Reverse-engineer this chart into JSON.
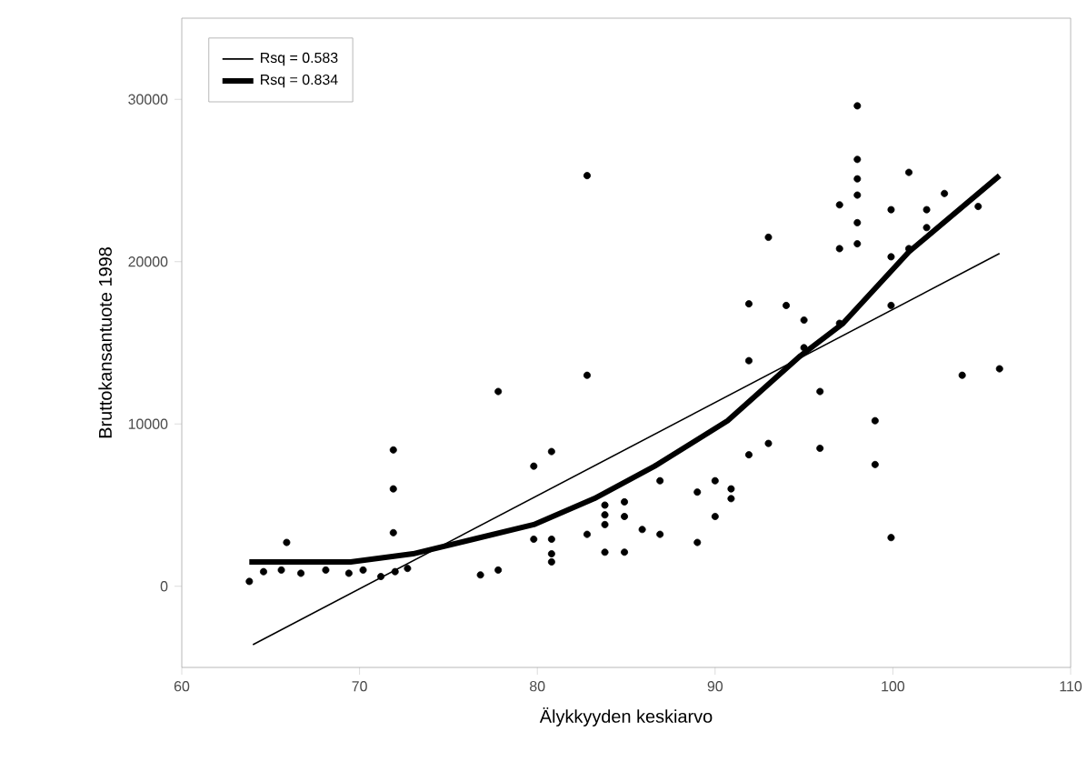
{
  "chart_data": {
    "type": "scatter",
    "xlabel": "Älykkyyden keskiarvo",
    "ylabel": "Bruttokansantuote 1998",
    "xlim": [
      60,
      110
    ],
    "xticks": [
      60,
      70,
      80,
      90,
      100,
      110
    ],
    "ylim": [
      -5000,
      35000
    ],
    "yticks": [
      0,
      10000,
      20000,
      30000
    ],
    "grid": false,
    "legend": "top left",
    "series": [
      {
        "color": "#000000",
        "marker": "circle",
        "x": [
          63.8,
          65.9,
          64.6,
          65.6,
          66.7,
          68.1,
          69.4,
          70.2,
          71.2,
          72.0,
          72.7,
          71.9,
          71.9,
          71.9,
          76.8,
          77.8,
          77.8,
          79.8,
          80.8,
          79.8,
          80.8,
          80.8,
          80.8,
          82.8,
          82.8,
          82.8,
          83.8,
          84.9,
          83.8,
          83.8,
          83.8,
          84.9,
          84.9,
          85.9,
          86.9,
          86.9,
          89.0,
          89.0,
          90.0,
          90.0,
          90.9,
          90.9,
          91.9,
          91.9,
          91.9,
          93.0,
          93.0,
          94.0,
          95.0,
          95.0,
          95.9,
          95.9,
          97.0,
          97.0,
          97.0,
          98.0,
          98.0,
          98.0,
          98.0,
          98.0,
          98.0,
          99.0,
          99.0,
          99.9,
          99.9,
          99.9,
          99.9,
          100.9,
          100.9,
          101.9,
          101.9,
          102.9,
          103.9,
          104.8,
          106.0
        ],
        "values": [
          300,
          2700,
          900,
          1000,
          800,
          1000,
          800,
          1000,
          600,
          900,
          1100,
          8400,
          6000,
          3300,
          700,
          1000,
          12000,
          7400,
          8300,
          2900,
          2900,
          2000,
          1500,
          25300,
          13000,
          3200,
          2100,
          2100,
          5000,
          4400,
          3800,
          5200,
          4300,
          3500,
          6500,
          3200,
          5800,
          2700,
          6500,
          4300,
          6000,
          5400,
          17400,
          13900,
          8100,
          21500,
          8800,
          17300,
          16400,
          14700,
          12000,
          8500,
          23500,
          20800,
          16200,
          29600,
          26300,
          25100,
          24100,
          22400,
          21100,
          10200,
          7500,
          23200,
          20300,
          17300,
          3000,
          25500,
          20800,
          23200,
          22100,
          24200,
          13000,
          23400,
          13400
        ]
      },
      {
        "type": "line",
        "name": "Rsq = 0.583",
        "color": "#000000",
        "marker": "none",
        "x": [
          64,
          106
        ],
        "values": [
          -3600,
          20500
        ]
      },
      {
        "type": "line",
        "name": "Rsq = 0.834",
        "color": "#000000",
        "marker": "none",
        "x": [
          63.8,
          69.5,
          73.0,
          76.4,
          79.8,
          83.2,
          86.6,
          90.7,
          94.8,
          97.2,
          100.9,
          106.0
        ],
        "values": [
          1500,
          1500,
          2000,
          2900,
          3800,
          5400,
          7400,
          10200,
          14200,
          16200,
          20600,
          25300
        ]
      }
    ]
  }
}
